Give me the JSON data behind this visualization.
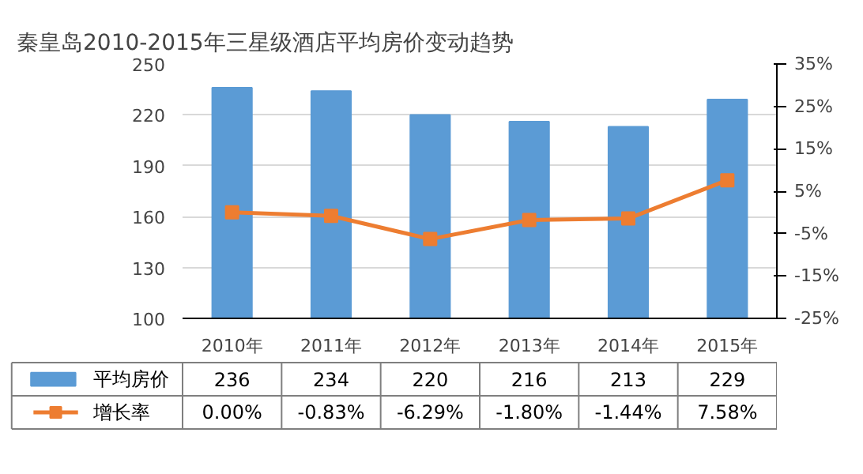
{
  "chart_data": {
    "type": "bar",
    "title": "秦皇岛2010-2015年三星级酒店平均房价变动趋势",
    "categories": [
      "2010年",
      "2011年",
      "2012年",
      "2013年",
      "2014年",
      "2015年"
    ],
    "series": [
      {
        "name": "平均房价",
        "color": "#5b9bd5",
        "values": [
          236,
          234,
          220,
          216,
          213,
          229
        ],
        "value_labels": [
          "236",
          "234",
          "220",
          "216",
          "213",
          "229"
        ]
      },
      {
        "name": "增长率",
        "type": "line",
        "axis": "y2",
        "color": "#ed7d31",
        "marker": "square",
        "values": [
          0.0,
          -0.83,
          -6.29,
          -1.8,
          -1.44,
          7.58
        ],
        "value_labels": [
          "0.00%",
          "-0.83%",
          "-6.29%",
          "-1.80%",
          "-1.44%",
          "7.58%"
        ]
      }
    ],
    "ylim": [
      100,
      250
    ],
    "yticks": [
      100,
      130,
      160,
      190,
      220,
      250
    ],
    "y2lim": [
      -25,
      35
    ],
    "y2ticks": [
      {
        "value": -25,
        "label": "-25%"
      },
      {
        "value": -15,
        "label": "-15%"
      },
      {
        "value": -5,
        "label": "-5%"
      },
      {
        "value": 5,
        "label": "5%"
      },
      {
        "value": 15,
        "label": "15%"
      },
      {
        "value": 25,
        "label": "25%"
      },
      {
        "value": 35,
        "label": "35%"
      }
    ],
    "grid": "y",
    "legend": "bottom"
  }
}
